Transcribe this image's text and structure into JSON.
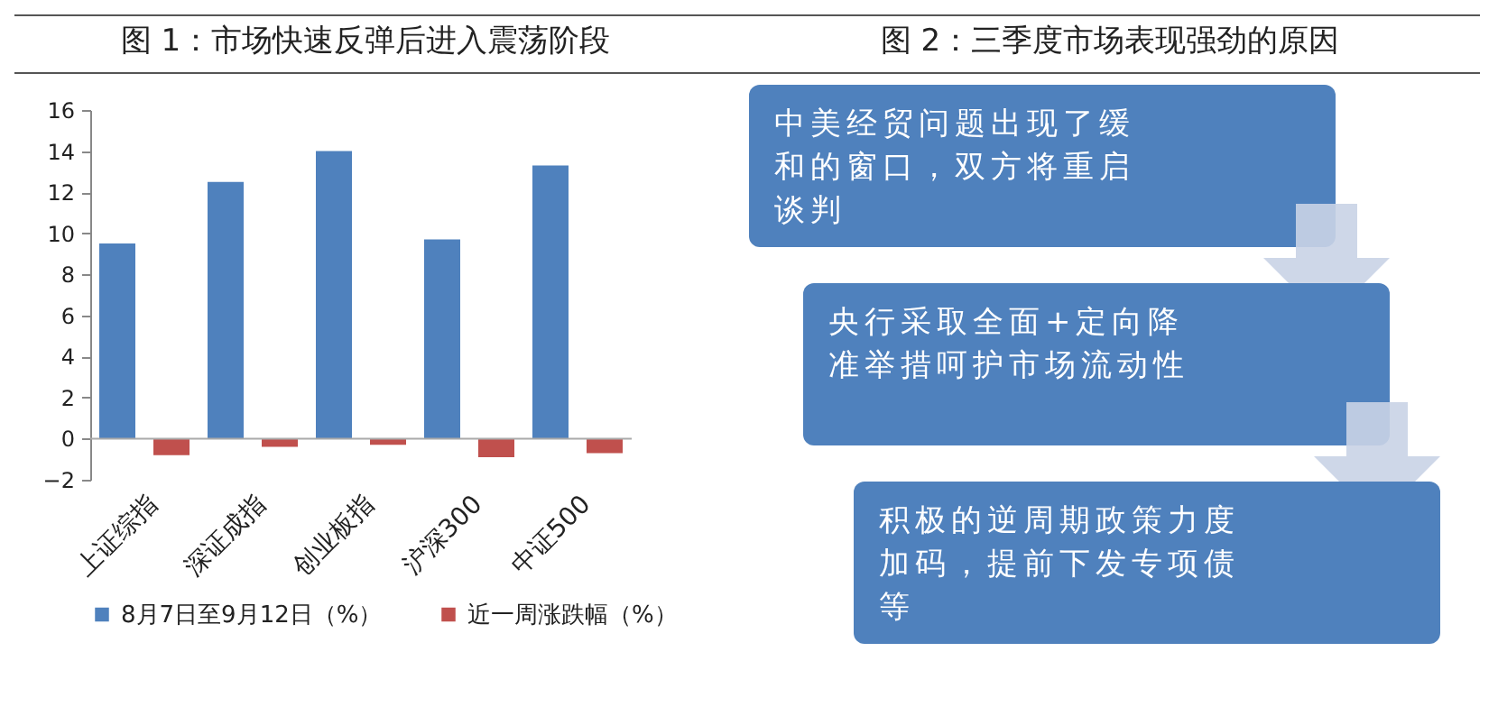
{
  "chart_data": [
    {
      "type": "bar",
      "title": "图 1：市场快速反弹后进入震荡阶段",
      "categories": [
        "上证综指",
        "深证成指",
        "创业板指",
        "沪深300",
        "中证500"
      ],
      "series": [
        {
          "name": "8月7日至9月12日（%）",
          "color": "#4f81bd",
          "values": [
            9.5,
            12.5,
            14.0,
            9.7,
            13.3
          ]
        },
        {
          "name": "近一周涨跌幅（%）",
          "color": "#c0504d",
          "values": [
            -0.8,
            -0.4,
            -0.3,
            -0.9,
            -0.7
          ]
        }
      ],
      "ylim": [
        -2,
        16
      ],
      "yticks": [
        -2,
        0,
        2,
        4,
        6,
        8,
        10,
        12,
        14,
        16
      ],
      "legend": "bottom"
    },
    {
      "type": "other",
      "title": "图 2：三季度市场表现强劲的原因",
      "annotations": [
        "中美经贸问题出现了缓和的窗口，双方将重启谈判",
        "央行采取全面+定向降准举措呵护市场流动性",
        "积极的逆周期政策力度加码，提前下发专项债等"
      ]
    }
  ]
}
